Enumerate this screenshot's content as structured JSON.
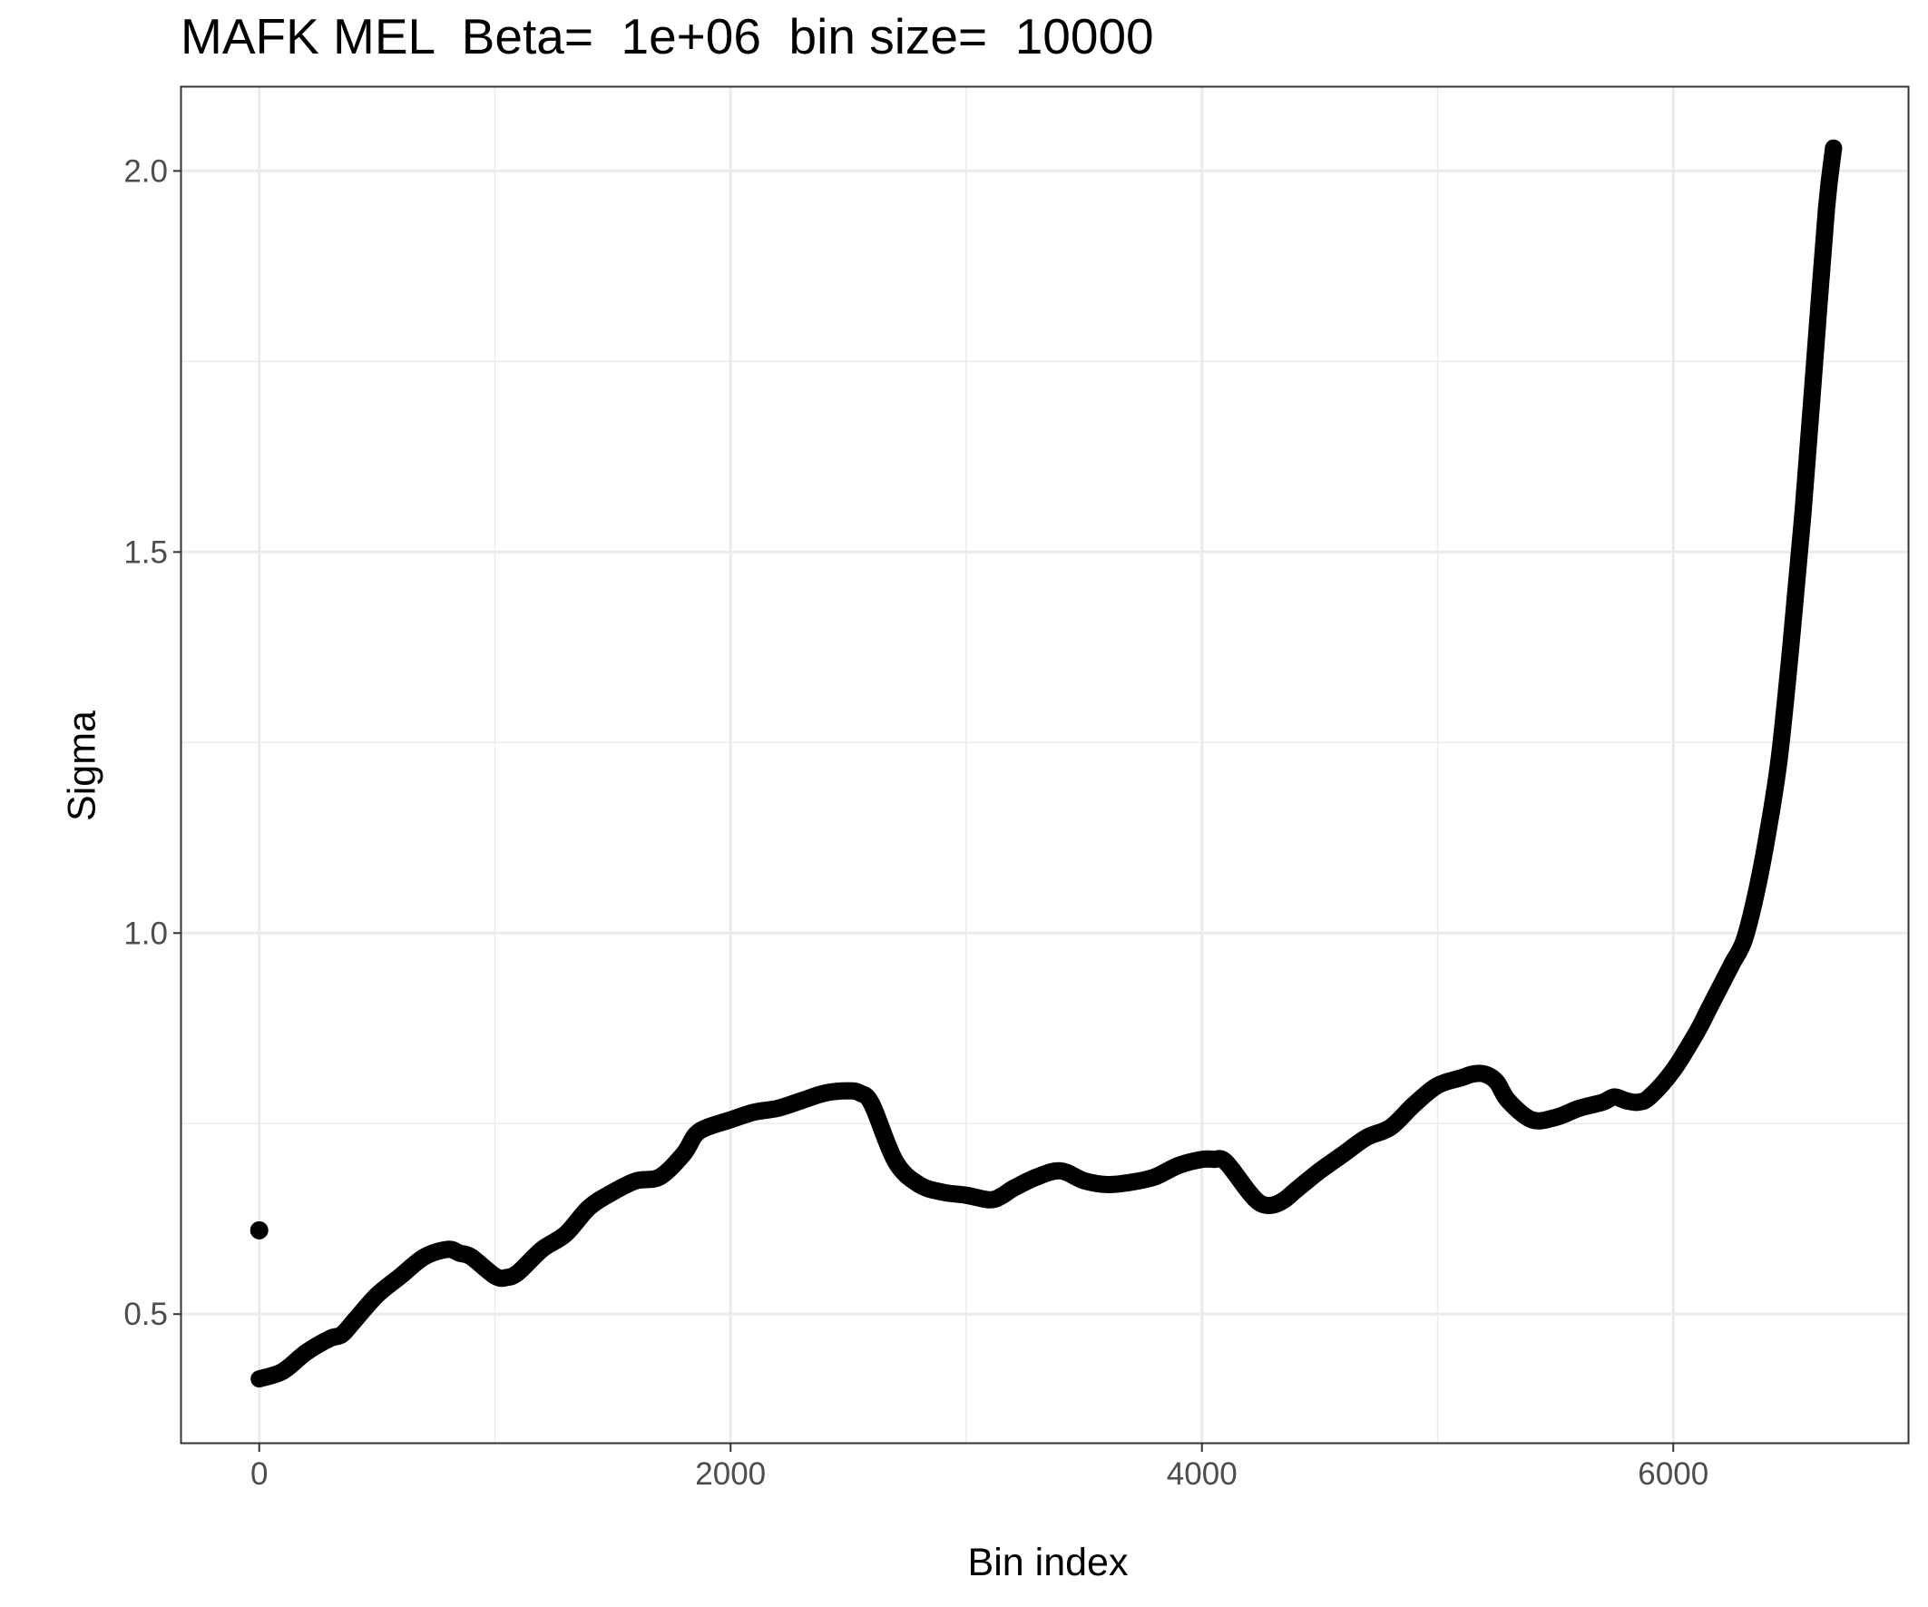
{
  "chart_data": {
    "type": "line",
    "title": "MAFK MEL  Beta=  1e+06  bin size=  10000",
    "xlabel": "Bin index",
    "ylabel": "Sigma",
    "xlim": [
      -330,
      7000
    ],
    "ylim": [
      0.33,
      2.11
    ],
    "x_ticks": [
      0,
      2000,
      4000,
      6000
    ],
    "x_tick_labels": [
      "0",
      "2000",
      "4000",
      "6000"
    ],
    "y_ticks": [
      0.5,
      1.0,
      1.5,
      2.0
    ],
    "y_tick_labels": [
      "0.5",
      "1.0",
      "1.5",
      "2.0"
    ],
    "grid": true,
    "outlier_point": {
      "x": 0,
      "y": 0.61
    },
    "series": [
      {
        "color": "#000000",
        "x": [
          0,
          100,
          200,
          300,
          350,
          400,
          500,
          600,
          700,
          800,
          850,
          900,
          1000,
          1050,
          1100,
          1200,
          1300,
          1400,
          1500,
          1600,
          1700,
          1800,
          1850,
          1900,
          2000,
          2100,
          2200,
          2300,
          2400,
          2500,
          2550,
          2600,
          2700,
          2800,
          2900,
          3000,
          3100,
          3150,
          3200,
          3300,
          3400,
          3500,
          3600,
          3700,
          3800,
          3900,
          4000,
          4050,
          4100,
          4200,
          4250,
          4300,
          4350,
          4400,
          4500,
          4600,
          4700,
          4800,
          4900,
          5000,
          5100,
          5150,
          5200,
          5250,
          5300,
          5400,
          5500,
          5600,
          5700,
          5750,
          5800,
          5850,
          5900,
          6000,
          6100,
          6150,
          6200,
          6250,
          6300,
          6350,
          6400,
          6450,
          6500,
          6550,
          6600,
          6650,
          6680
        ],
        "y": [
          0.415,
          0.425,
          0.45,
          0.468,
          0.473,
          0.49,
          0.525,
          0.55,
          0.575,
          0.585,
          0.58,
          0.575,
          0.55,
          0.548,
          0.555,
          0.585,
          0.605,
          0.64,
          0.66,
          0.675,
          0.68,
          0.71,
          0.735,
          0.745,
          0.755,
          0.765,
          0.77,
          0.78,
          0.79,
          0.793,
          0.79,
          0.775,
          0.7,
          0.67,
          0.66,
          0.656,
          0.65,
          0.655,
          0.665,
          0.68,
          0.688,
          0.675,
          0.67,
          0.673,
          0.68,
          0.695,
          0.703,
          0.703,
          0.7,
          0.66,
          0.645,
          0.643,
          0.65,
          0.663,
          0.688,
          0.71,
          0.732,
          0.745,
          0.775,
          0.8,
          0.81,
          0.815,
          0.815,
          0.805,
          0.78,
          0.755,
          0.758,
          0.77,
          0.778,
          0.785,
          0.78,
          0.778,
          0.785,
          0.82,
          0.87,
          0.9,
          0.93,
          0.96,
          0.99,
          1.05,
          1.13,
          1.23,
          1.38,
          1.55,
          1.75,
          1.95,
          2.03
        ]
      }
    ]
  }
}
